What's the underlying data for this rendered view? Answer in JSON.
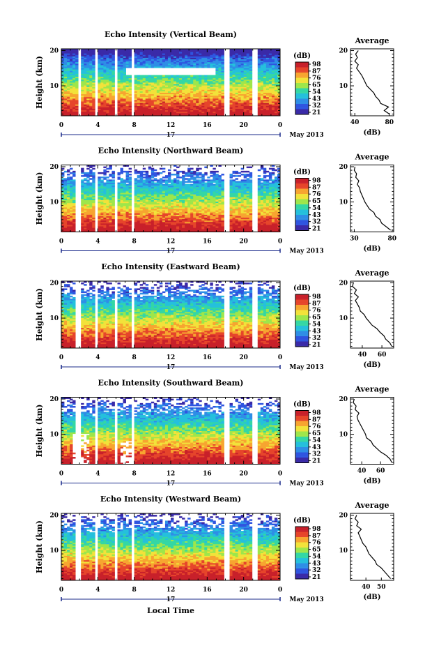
{
  "figure": {
    "month_label": "May 2013",
    "xlabel": "Local Time",
    "avg_title": "Average",
    "avg_unit": "(dB)",
    "colorbar_unit": "(dB)",
    "colorbar_ticks": [
      "98",
      "87",
      "76",
      "65",
      "54",
      "43",
      "32",
      "21"
    ],
    "colors": [
      "#3a2aa8",
      "#2f55e0",
      "#2e8ee6",
      "#25c0dc",
      "#34d7a4",
      "#9ee64b",
      "#f2e23a",
      "#f7a530",
      "#e6452b",
      "#c8202a"
    ]
  },
  "chart_data": [
    {
      "type": "heatmap",
      "title": "Echo Intensity (Vertical Beam)",
      "ylabel": "Height (km)",
      "x_ticks": [
        "0",
        "4",
        "8",
        "12",
        "16",
        "20",
        "0"
      ],
      "y_ticks": [
        "20",
        "10"
      ],
      "xlim": [
        0,
        24
      ],
      "ylim": [
        1.5,
        20.5
      ],
      "day_label": "17",
      "clim": [
        21,
        98
      ],
      "gaps": [
        [
          1.7,
          2.3
        ],
        [
          3.6,
          4.0
        ],
        [
          5.7,
          6.0
        ],
        [
          7.6,
          8.0
        ],
        [
          18.0,
          18.5
        ],
        [
          21.0,
          21.5
        ]
      ],
      "avg": {
        "xlabel": "(dB)",
        "x_ticks": [
          40,
          80
        ],
        "xlim": [
          35,
          85
        ],
        "y_ticks": [
          "20",
          "10"
        ],
        "ylim": [
          1.5,
          20.5
        ],
        "heights": [
          2,
          3,
          4,
          5,
          6,
          7,
          8,
          9,
          10,
          11,
          12,
          13,
          14,
          15,
          16,
          17,
          18,
          19,
          20
        ],
        "values": [
          80,
          74,
          79,
          70,
          68,
          64,
          62,
          58,
          54,
          52,
          50,
          48,
          45,
          42,
          44,
          40,
          43,
          41,
          44
        ]
      }
    },
    {
      "type": "heatmap",
      "title": "Echo Intensity (Northward Beam)",
      "ylabel": "Height (km)",
      "x_ticks": [
        "0",
        "4",
        "8",
        "12",
        "16",
        "20",
        "0"
      ],
      "y_ticks": [
        "20",
        "10"
      ],
      "xlim": [
        0,
        24
      ],
      "ylim": [
        1.5,
        20.5
      ],
      "day_label": "17",
      "clim": [
        21,
        98
      ],
      "gaps": [
        [
          1.6,
          2.2
        ],
        [
          3.6,
          4.0
        ],
        [
          5.7,
          6.0
        ],
        [
          7.6,
          8.0
        ],
        [
          18.0,
          18.5
        ],
        [
          21.0,
          21.5
        ]
      ],
      "avg": {
        "xlabel": "(dB)",
        "x_ticks": [
          30,
          80
        ],
        "xlim": [
          25,
          82
        ],
        "y_ticks": [
          "20",
          "10"
        ],
        "ylim": [
          1.5,
          20.5
        ],
        "heights": [
          2,
          3,
          4,
          5,
          6,
          7,
          8,
          9,
          10,
          11,
          12,
          13,
          14,
          15,
          16,
          17,
          18,
          19,
          20
        ],
        "values": [
          78,
          72,
          66,
          64,
          58,
          56,
          50,
          47,
          44,
          42,
          40,
          38,
          37,
          34,
          36,
          32,
          33,
          30,
          31
        ]
      }
    },
    {
      "type": "heatmap",
      "title": "Echo Intensity (Eastward Beam)",
      "ylabel": "Height (km)",
      "x_ticks": [
        "0",
        "4",
        "8",
        "12",
        "16",
        "20",
        "0"
      ],
      "y_ticks": [
        "20",
        "10"
      ],
      "xlim": [
        0,
        24
      ],
      "ylim": [
        1.5,
        20.5
      ],
      "day_label": "17",
      "clim": [
        21,
        98
      ],
      "gaps": [
        [
          1.6,
          2.2
        ],
        [
          3.6,
          4.0
        ],
        [
          5.7,
          6.0
        ],
        [
          7.6,
          8.0
        ],
        [
          18.0,
          18.5
        ],
        [
          21.0,
          21.5
        ]
      ],
      "avg": {
        "xlabel": "(dB)",
        "x_ticks": [
          40,
          60
        ],
        "xlim": [
          28,
          72
        ],
        "y_ticks": [
          "20",
          "10"
        ],
        "ylim": [
          1.5,
          20.5
        ],
        "heights": [
          2,
          3,
          4,
          5,
          6,
          7,
          8,
          9,
          10,
          11,
          12,
          13,
          14,
          15,
          16,
          17,
          18,
          19,
          20
        ],
        "values": [
          70,
          68,
          64,
          62,
          58,
          55,
          50,
          47,
          44,
          42,
          38,
          37,
          35,
          33,
          36,
          32,
          34,
          30,
          31
        ]
      }
    },
    {
      "type": "heatmap",
      "title": "Echo Intensity (Southward Beam)",
      "ylabel": "Height (km)",
      "x_ticks": [
        "0",
        "4",
        "8",
        "12",
        "16",
        "20",
        "0"
      ],
      "y_ticks": [
        "20",
        "10"
      ],
      "xlim": [
        0,
        24
      ],
      "ylim": [
        1.5,
        20.5
      ],
      "day_label": "17",
      "clim": [
        21,
        98
      ],
      "gaps": [
        [
          1.6,
          2.2
        ],
        [
          3.6,
          4.0
        ],
        [
          5.7,
          6.0
        ],
        [
          7.6,
          8.0
        ],
        [
          18.0,
          18.5
        ],
        [
          21.0,
          21.5
        ]
      ],
      "avg": {
        "xlabel": "(dB)",
        "x_ticks": [
          40,
          60
        ],
        "xlim": [
          28,
          74
        ],
        "y_ticks": [
          "20",
          "10"
        ],
        "ylim": [
          1.5,
          20.5
        ],
        "heights": [
          2,
          3,
          4,
          5,
          6,
          7,
          8,
          9,
          10,
          11,
          12,
          13,
          14,
          15,
          16,
          17,
          18,
          19,
          20
        ],
        "values": [
          72,
          70,
          66,
          60,
          56,
          52,
          50,
          45,
          44,
          42,
          40,
          38,
          36,
          35,
          37,
          33,
          34,
          31,
          32
        ]
      }
    },
    {
      "type": "heatmap",
      "title": "Echo Intensity (Westward Beam)",
      "ylabel": "Height (km)",
      "x_ticks": [
        "0",
        "4",
        "8",
        "12",
        "16",
        "20",
        "0"
      ],
      "y_ticks": [
        "20",
        "10"
      ],
      "xlim": [
        0,
        24
      ],
      "ylim": [
        1.5,
        20.5
      ],
      "day_label": "17",
      "clim": [
        21,
        98
      ],
      "gaps": [
        [
          1.6,
          2.2
        ],
        [
          3.6,
          4.0
        ],
        [
          5.7,
          6.0
        ],
        [
          7.6,
          8.0
        ],
        [
          18.0,
          18.5
        ],
        [
          21.0,
          21.5
        ]
      ],
      "avg": {
        "xlabel": "(dB)",
        "x_ticks": [
          40,
          50
        ],
        "xlim": [
          30,
          58
        ],
        "y_ticks": [
          "20",
          "10"
        ],
        "ylim": [
          1.5,
          20.5
        ],
        "heights": [
          2,
          3,
          4,
          5,
          6,
          7,
          8,
          9,
          10,
          11,
          12,
          13,
          14,
          15,
          16,
          17,
          18,
          19,
          20
        ],
        "values": [
          56,
          54,
          52,
          50,
          47,
          46,
          44,
          42,
          41,
          40,
          38,
          37,
          36,
          35,
          37,
          34,
          35,
          33,
          34
        ]
      }
    }
  ]
}
